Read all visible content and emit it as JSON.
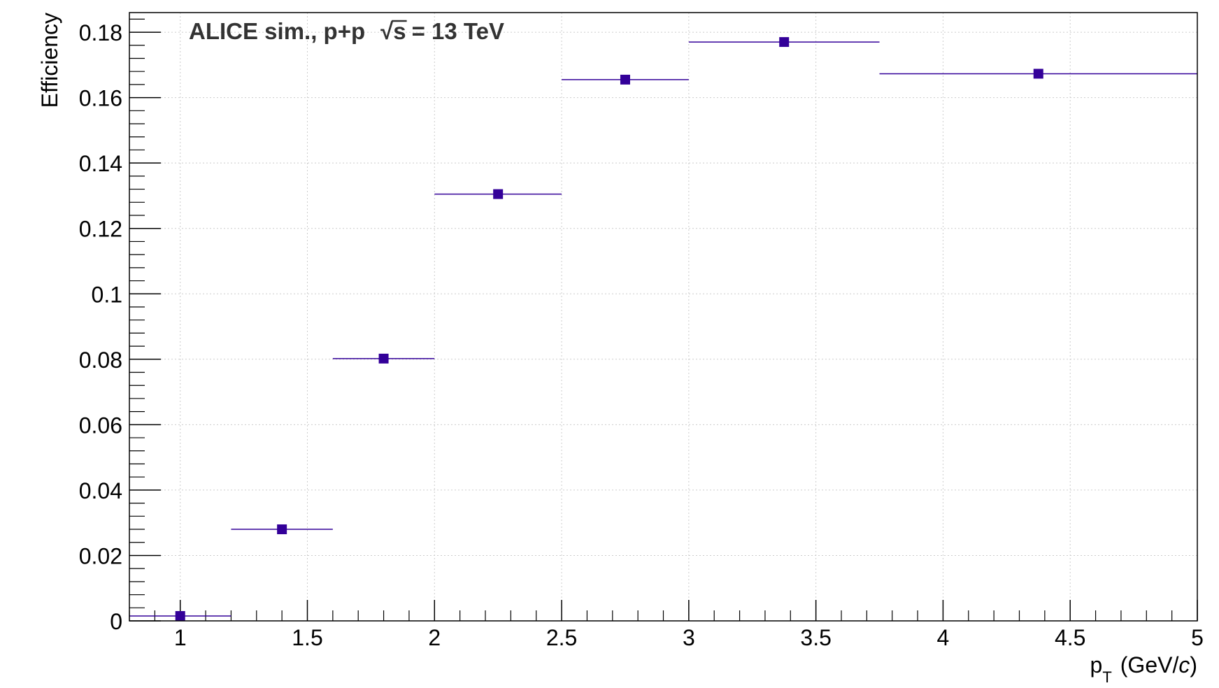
{
  "chart_data": {
    "type": "scatter",
    "annotation": {
      "prefix": "ALICE sim., p+p",
      "sqrt_sign": "√",
      "sqrt_var": "s",
      "suffix": "= 13 TeV"
    },
    "xlabel": {
      "main": "p",
      "sub": "T",
      "unit_prefix": "(GeV/",
      "unit_italic": "c",
      "unit_suffix": ")"
    },
    "ylabel": "Efficiency",
    "xlim": [
      0.8,
      5.0
    ],
    "ylim": [
      0,
      0.186
    ],
    "x_ticks": [
      "1",
      "1.5",
      "2",
      "2.5",
      "3",
      "3.5",
      "4",
      "4.5",
      "5"
    ],
    "y_ticks": [
      "0",
      "0.02",
      "0.04",
      "0.06",
      "0.08",
      "0.1",
      "0.12",
      "0.14",
      "0.16",
      "0.18"
    ],
    "grid": true,
    "marker_color": "#330099",
    "points": [
      {
        "x": 1.0,
        "x_low": 0.8,
        "x_high": 1.2,
        "y": 0.0015
      },
      {
        "x": 1.4,
        "x_low": 1.2,
        "x_high": 1.6,
        "y": 0.028
      },
      {
        "x": 1.8,
        "x_low": 1.6,
        "x_high": 2.0,
        "y": 0.0802
      },
      {
        "x": 2.25,
        "x_low": 2.0,
        "x_high": 2.5,
        "y": 0.1305
      },
      {
        "x": 2.75,
        "x_low": 2.5,
        "x_high": 3.0,
        "y": 0.1655
      },
      {
        "x": 3.375,
        "x_low": 3.0,
        "x_high": 3.75,
        "y": 0.177
      },
      {
        "x": 4.375,
        "x_low": 3.75,
        "x_high": 5.0,
        "y": 0.1673
      }
    ]
  }
}
